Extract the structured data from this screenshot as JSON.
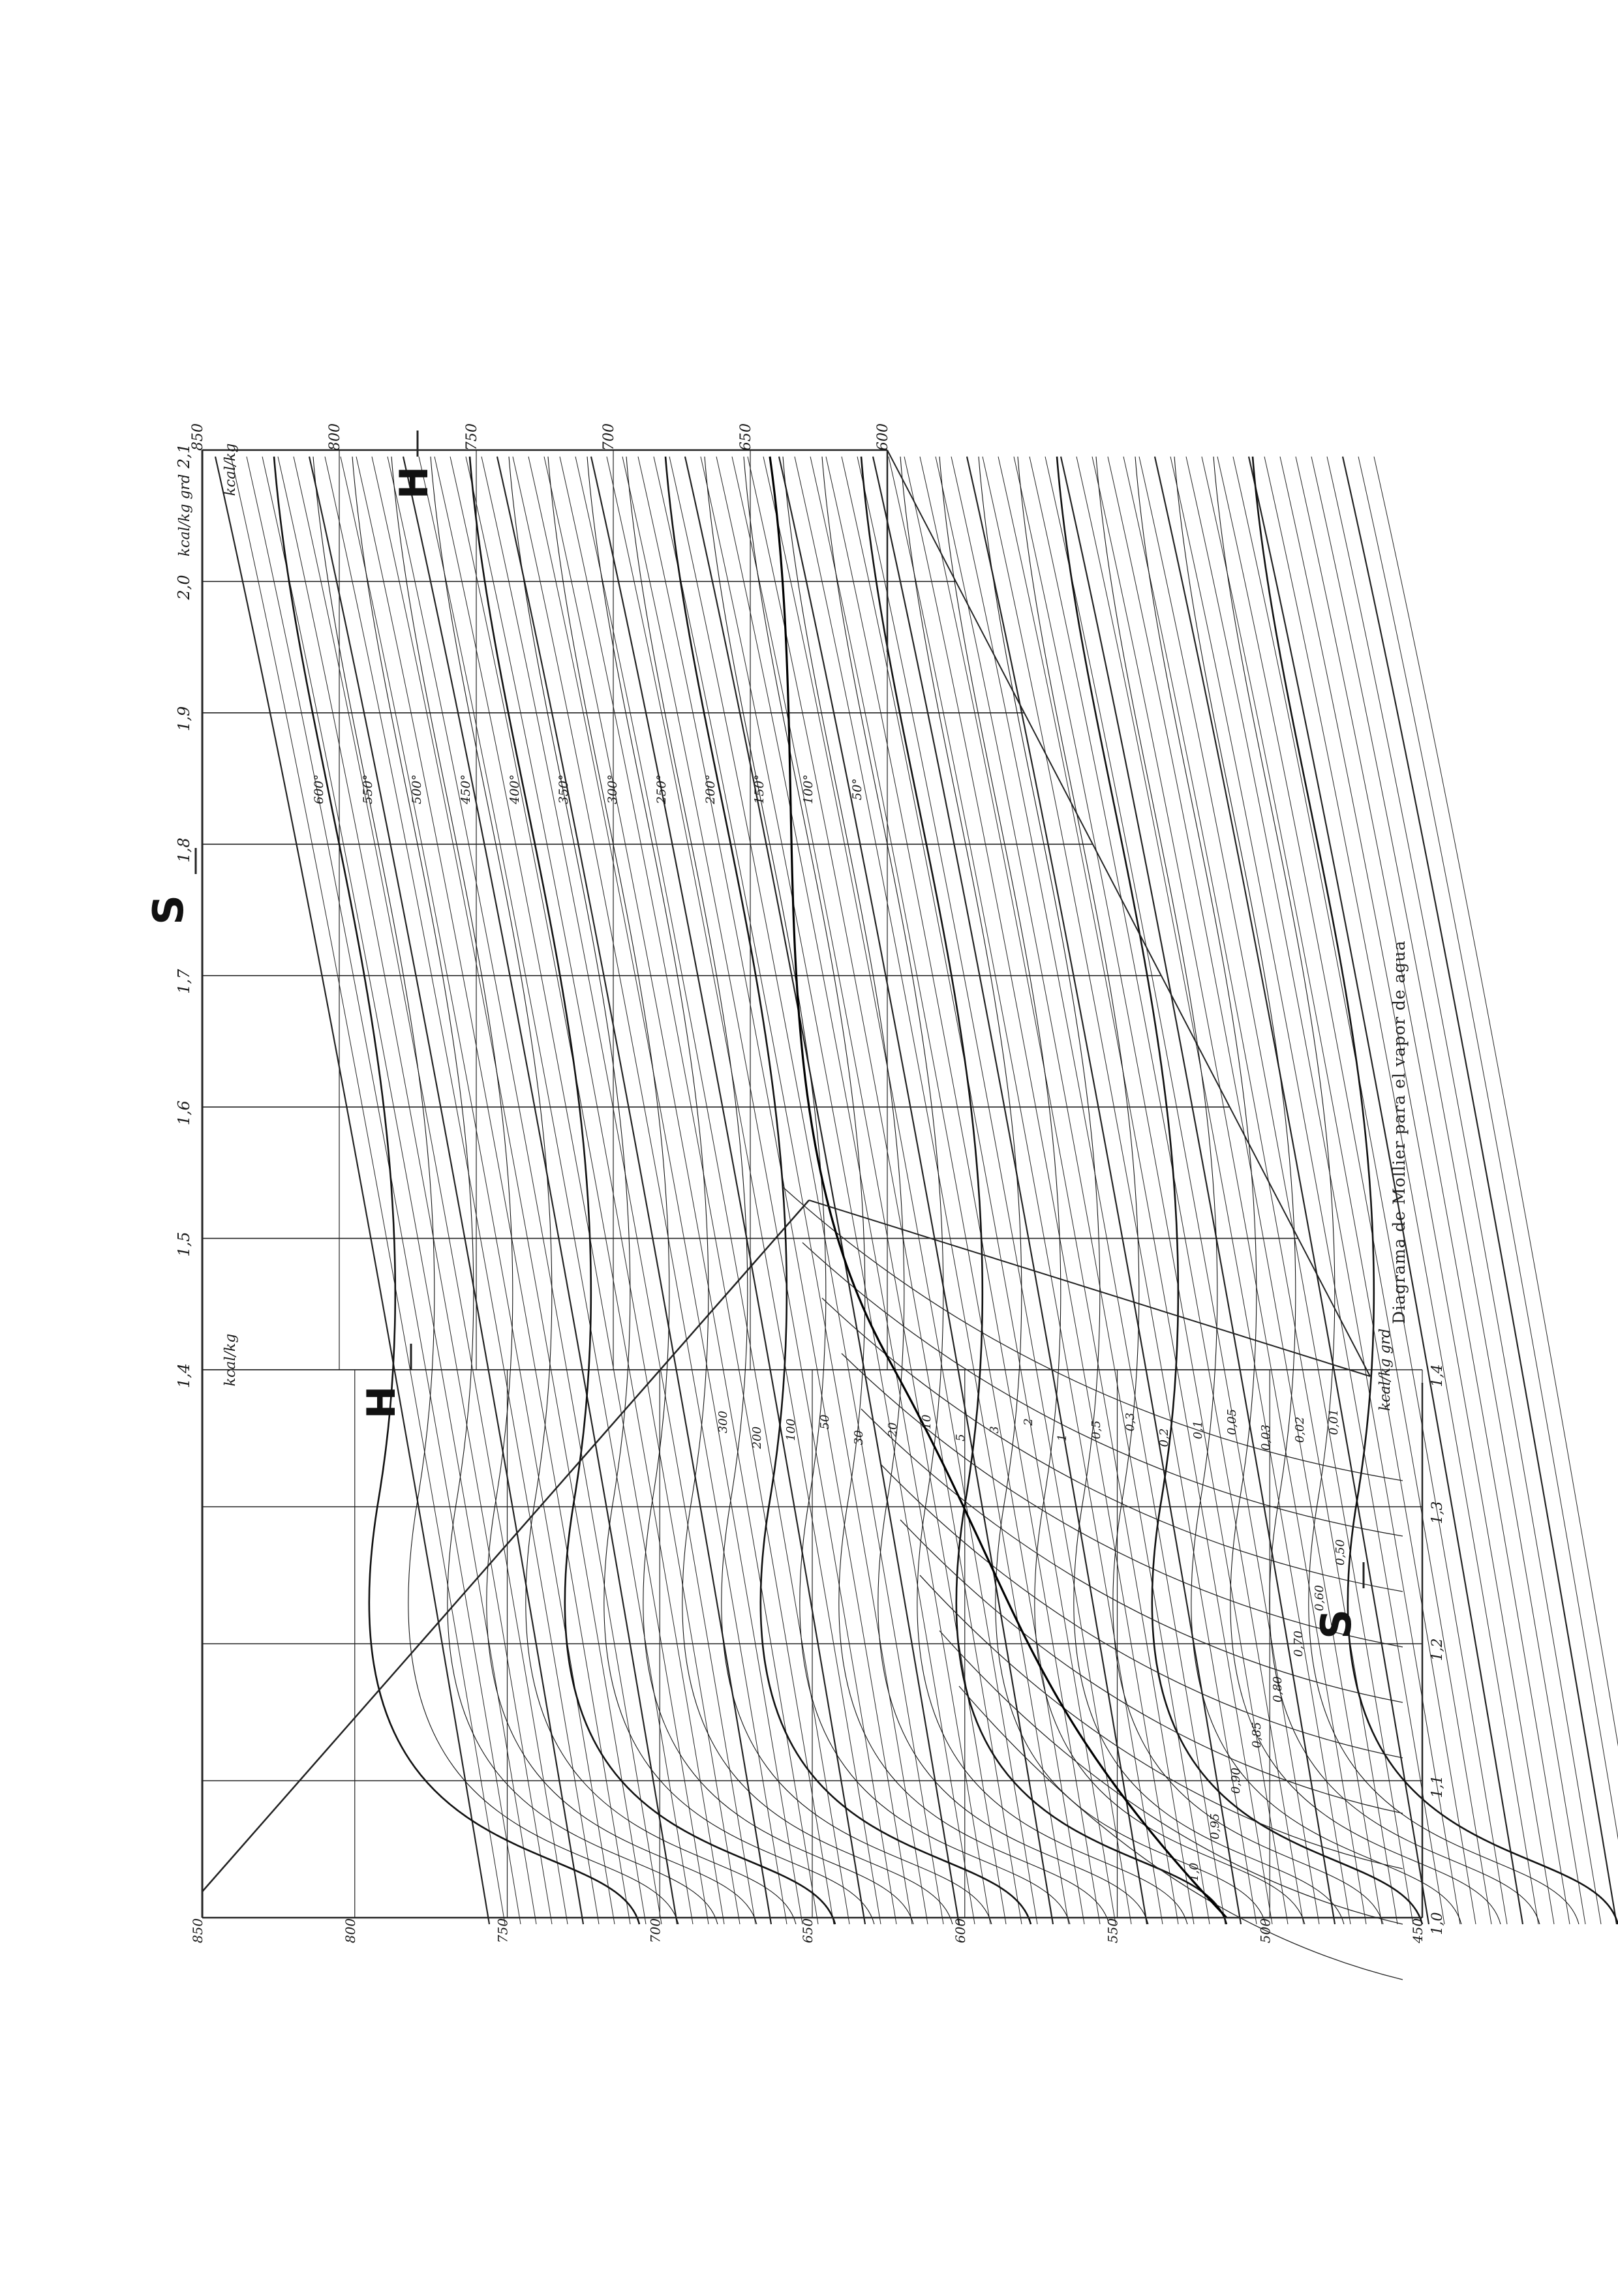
{
  "page": {
    "caption": "Diagrama de Mollier para el vapor de agua"
  },
  "chart_data": {
    "type": "line",
    "title": "Diagrama de Mollier para el vapor de agua",
    "orientation": "rotated 90° counter-clockwise on the page",
    "x_axis": {
      "symbol": "S",
      "unit_label": "kcal/kg grd",
      "range": [
        1.0,
        2.1
      ],
      "ticks_lower_chart": [
        "1,0",
        "1,1",
        "1,2",
        "1,3",
        "1,4"
      ],
      "ticks_upper_chart": [
        "1,4",
        "1,5",
        "1,6",
        "1,7",
        "1,8",
        "1,9",
        "2,0",
        "2,1"
      ]
    },
    "y_axis": {
      "symbol": "H",
      "unit_label": "kcal/kg",
      "lower_chart_range": [
        450,
        850
      ],
      "upper_chart_range": [
        600,
        850
      ],
      "ticks_lower_chart": [
        "450",
        "500",
        "550",
        "600",
        "650",
        "700",
        "750",
        "800",
        "850"
      ],
      "ticks_upper_chart": [
        "600",
        "650",
        "700",
        "750",
        "800",
        "850"
      ]
    },
    "families": {
      "isobars_kg_cm2": [
        "0,01",
        "0,02",
        "0,03",
        "0,05",
        "0,1",
        "0,2",
        "0,3",
        "0,5",
        "1",
        "2",
        "3",
        "5",
        "10",
        "20",
        "30",
        "50",
        "100",
        "200",
        "300"
      ],
      "isotherms_C": [
        "50°",
        "100°",
        "150°",
        "200°",
        "250°",
        "300°",
        "350°",
        "400°",
        "450°",
        "500°",
        "550°",
        "600°"
      ],
      "dryness_fraction_x": [
        "0,50",
        "0,60",
        "0,70",
        "0,80",
        "0,85",
        "0,90",
        "0,95",
        "1,0"
      ],
      "saturation_curve": "x = 1,0"
    },
    "grid": true,
    "legend": "none"
  }
}
